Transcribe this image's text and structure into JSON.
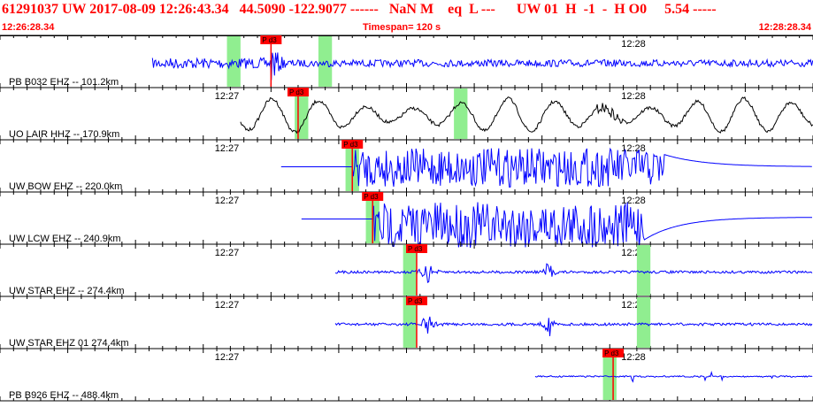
{
  "header": {
    "title": "61291037 UW 2017-08-09 12:26:43.34   44.5090 -122.9077 ------   NaN M    eq  L ---      UW 01  H  -1  -  H O0     5.54 -----",
    "start_time": "12:26:28.34",
    "timespan": "Timespan= 120 s",
    "end_time": "12:28:28.34"
  },
  "colors": {
    "trace": "#0000ff",
    "trace_alt": "#000000",
    "header_text": "#ff0000",
    "pick_flag": "#ff0000",
    "pick_line": "#ff0000",
    "window": "#90ee90"
  },
  "time_axis": {
    "labels": [
      "12:27",
      "12:28"
    ]
  },
  "channels": [
    {
      "label": "PB B032 EHZ --  101.2km",
      "pick": "P d3",
      "color": "blue",
      "start_s": 22.5,
      "end_s": 120,
      "p_s": 40.0,
      "kind": "local",
      "windows": [
        [
          33.5,
          35.5
        ],
        [
          47.0,
          49.0
        ]
      ]
    },
    {
      "label": "UO LAIR HHZ --  170.9km",
      "pick": "P d3",
      "color": "black",
      "start_s": 35.5,
      "end_s": 120,
      "p_s": 44.0,
      "kind": "long",
      "windows": [
        [
          43.5,
          45.5
        ],
        [
          67.0,
          69.0
        ]
      ]
    },
    {
      "label": "UW BOW EHZ --  220.0km",
      "pick": "P d3",
      "color": "blue",
      "start_s": 41.5,
      "end_s": 120,
      "p_s": 52.0,
      "kind": "clip",
      "windows": [
        [
          51.0,
          53.0
        ]
      ]
    },
    {
      "label": "UW LCW EHZ --  240.9km",
      "pick": "P d3",
      "color": "blue",
      "start_s": 44.5,
      "end_s": 120,
      "p_s": 55.0,
      "kind": "clip2",
      "windows": [
        [
          54.0,
          56.0
        ]
      ]
    },
    {
      "label": "UW STAR EHZ --  274.4km",
      "pick": "P d3",
      "color": "blue",
      "start_s": 49.5,
      "end_s": 120,
      "p_s": 61.5,
      "kind": "quiet",
      "windows": [
        [
          59.5,
          61.5
        ],
        [
          94.0,
          96.0
        ]
      ]
    },
    {
      "label": "UW STAR EHZ 01  274.4km",
      "pick": "P d3",
      "color": "blue",
      "start_s": 49.5,
      "end_s": 120,
      "p_s": 61.5,
      "kind": "quiet",
      "windows": [
        [
          59.5,
          61.5
        ],
        [
          94.0,
          96.0
        ]
      ]
    },
    {
      "label": "PB B926 EHZ --  488.4km",
      "pick": "P d3",
      "color": "blue",
      "start_s": 79.0,
      "end_s": 120,
      "p_s": 90.5,
      "kind": "sparse",
      "windows": [
        [
          89.0,
          91.0
        ]
      ]
    }
  ]
}
